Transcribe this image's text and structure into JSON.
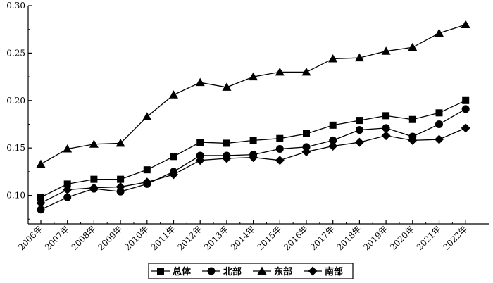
{
  "chart_data": {
    "type": "line",
    "title": "",
    "xlabel": "",
    "ylabel": "",
    "categories": [
      "2006年",
      "2007年",
      "2008年",
      "2009年",
      "2010年",
      "2011年",
      "2012年",
      "2013年",
      "2014年",
      "2015年",
      "2016年",
      "2017年",
      "2018年",
      "2019年",
      "2020年",
      "2021年",
      "2022年"
    ],
    "ylim": [
      0.07,
      0.3
    ],
    "yticks": [
      "0.10",
      "0.15",
      "0.20",
      "0.25",
      "0.30"
    ],
    "grid": false,
    "legend_position": "bottom",
    "series": [
      {
        "name": "总体",
        "marker": "square",
        "values": [
          0.098,
          0.112,
          0.117,
          0.117,
          0.127,
          0.141,
          0.156,
          0.155,
          0.158,
          0.16,
          0.165,
          0.174,
          0.179,
          0.184,
          0.18,
          0.187,
          0.2
        ]
      },
      {
        "name": "北部",
        "marker": "circle",
        "values": [
          0.085,
          0.098,
          0.107,
          0.104,
          0.112,
          0.125,
          0.142,
          0.142,
          0.143,
          0.149,
          0.151,
          0.158,
          0.169,
          0.171,
          0.162,
          0.175,
          0.191
        ]
      },
      {
        "name": "东部",
        "marker": "triangle",
        "values": [
          0.133,
          0.149,
          0.154,
          0.155,
          0.183,
          0.206,
          0.219,
          0.214,
          0.225,
          0.23,
          0.23,
          0.244,
          0.245,
          0.252,
          0.256,
          0.271,
          0.28
        ]
      },
      {
        "name": "南部",
        "marker": "diamond",
        "values": [
          0.092,
          0.106,
          0.108,
          0.109,
          0.114,
          0.122,
          0.137,
          0.139,
          0.14,
          0.137,
          0.146,
          0.152,
          0.156,
          0.163,
          0.158,
          0.159,
          0.171
        ]
      }
    ]
  }
}
